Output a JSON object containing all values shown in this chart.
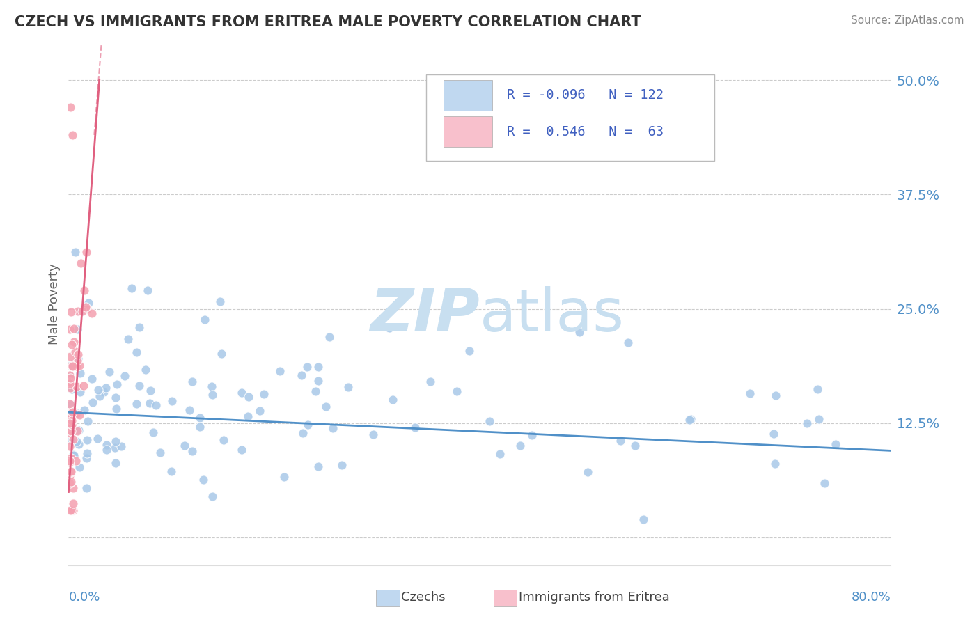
{
  "title": "CZECH VS IMMIGRANTS FROM ERITREA MALE POVERTY CORRELATION CHART",
  "source": "Source: ZipAtlas.com",
  "ylabel": "Male Poverty",
  "ytick_positions": [
    0.0,
    0.125,
    0.25,
    0.375,
    0.5
  ],
  "ytick_labels": [
    "",
    "12.5%",
    "25.0%",
    "37.5%",
    "50.0%"
  ],
  "xlim": [
    0.0,
    0.8
  ],
  "ylim": [
    -0.03,
    0.54
  ],
  "czechs_color": "#a8c8e8",
  "eritrea_color": "#f4a0b0",
  "line_czech_color": "#5090c8",
  "line_eritrea_color": "#e06080",
  "background_color": "#ffffff",
  "grid_color": "#cccccc",
  "legend_box_color_czech": "#c0d8f0",
  "legend_box_color_eritrea": "#f8c0cc",
  "legend_text_color": "#4060c0",
  "watermark_color": "#c8dff0",
  "ytick_color": "#5090c8",
  "xlabel_color": "#5090c8",
  "title_color": "#333333",
  "source_color": "#888888",
  "ylabel_color": "#666666"
}
